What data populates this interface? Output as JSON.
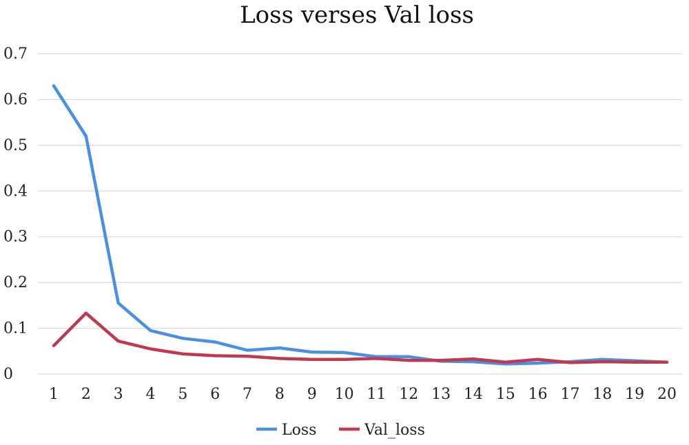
{
  "chart_data": {
    "type": "line",
    "title": "Loss verses Val loss",
    "xlabel": "",
    "ylabel": "",
    "x": [
      1,
      2,
      3,
      4,
      5,
      6,
      7,
      8,
      9,
      10,
      11,
      12,
      13,
      14,
      15,
      16,
      17,
      18,
      19,
      20
    ],
    "ylim": [
      0,
      0.7
    ],
    "yticks": [
      "0",
      "0.1",
      "0.2",
      "0.3",
      "0.4",
      "0.5",
      "0.6",
      "0.7"
    ],
    "grid": true,
    "legend_position": "bottom",
    "series": [
      {
        "name": "Loss",
        "color": "#4a90e2",
        "values": [
          0.63,
          0.52,
          0.155,
          0.095,
          0.078,
          0.07,
          0.052,
          0.057,
          0.048,
          0.047,
          0.038,
          0.038,
          0.028,
          0.027,
          0.022,
          0.024,
          0.027,
          0.032,
          0.029,
          0.026
        ]
      },
      {
        "name": "Val_loss",
        "color": "#c0394f",
        "values": [
          0.062,
          0.133,
          0.072,
          0.055,
          0.044,
          0.04,
          0.039,
          0.034,
          0.032,
          0.032,
          0.034,
          0.03,
          0.03,
          0.033,
          0.026,
          0.032,
          0.025,
          0.027,
          0.026,
          0.026
        ]
      }
    ]
  }
}
